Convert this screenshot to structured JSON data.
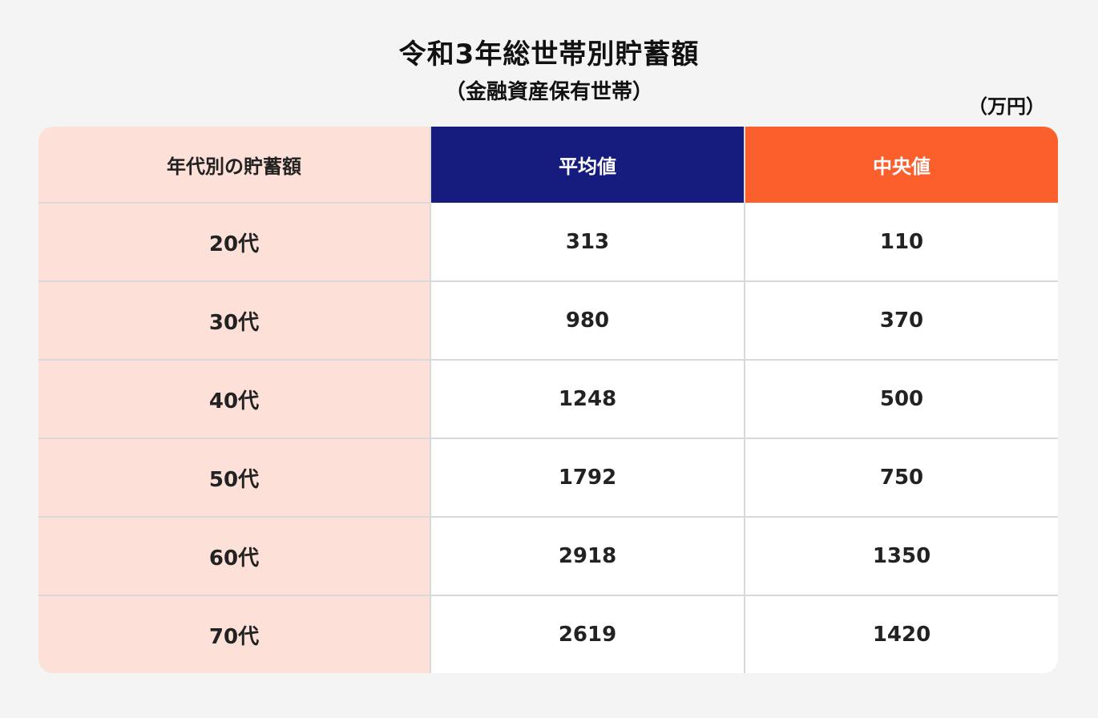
{
  "chart_data": {
    "type": "table",
    "title": "令和3年総世帯別貯蓄額",
    "subtitle": "（金融資産保有世帯）",
    "unit": "（万円）",
    "headers": [
      "年代別の貯蓄額",
      "平均値",
      "中央値"
    ],
    "rows": [
      {
        "age": "20代",
        "mean": "313",
        "median": "110"
      },
      {
        "age": "30代",
        "mean": "980",
        "median": "370"
      },
      {
        "age": "40代",
        "mean": "1248",
        "median": "500"
      },
      {
        "age": "50代",
        "mean": "1792",
        "median": "750"
      },
      {
        "age": "60代",
        "mean": "2918",
        "median": "1350"
      },
      {
        "age": "70代",
        "mean": "2619",
        "median": "1420"
      }
    ]
  },
  "colors": {
    "background": "#f4f4f4",
    "age_column": "#fde0d7",
    "mean_header": "#151c7e",
    "median_header": "#fa5f2c",
    "grid": "#d9d9d9"
  }
}
